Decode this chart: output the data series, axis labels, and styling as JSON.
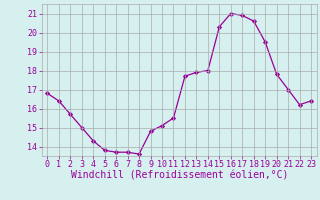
{
  "x": [
    0,
    1,
    2,
    3,
    4,
    5,
    6,
    7,
    8,
    9,
    10,
    11,
    12,
    13,
    14,
    15,
    16,
    17,
    18,
    19,
    20,
    21,
    22,
    23
  ],
  "y": [
    16.8,
    16.4,
    15.7,
    15.0,
    14.3,
    13.8,
    13.7,
    13.7,
    13.6,
    14.8,
    15.1,
    15.5,
    17.7,
    17.9,
    18.0,
    20.3,
    21.0,
    20.9,
    20.6,
    19.5,
    17.8,
    17.0,
    16.2,
    16.4
  ],
  "xlabel": "Windchill (Refroidissement éolien,°C)",
  "xlim": [
    -0.5,
    23.5
  ],
  "ylim": [
    13.5,
    21.5
  ],
  "yticks": [
    14,
    15,
    16,
    17,
    18,
    19,
    20,
    21
  ],
  "xticks": [
    0,
    1,
    2,
    3,
    4,
    5,
    6,
    7,
    8,
    9,
    10,
    11,
    12,
    13,
    14,
    15,
    16,
    17,
    18,
    19,
    20,
    21,
    22,
    23
  ],
  "line_color": "#990099",
  "marker": "D",
  "marker_size": 2.2,
  "bg_color": "#d6f0f0",
  "grid_color": "#aaaaaa",
  "label_color": "#990099",
  "tick_color": "#990099",
  "font_family": "monospace",
  "xlabel_fontsize": 7,
  "tick_fontsize": 6
}
